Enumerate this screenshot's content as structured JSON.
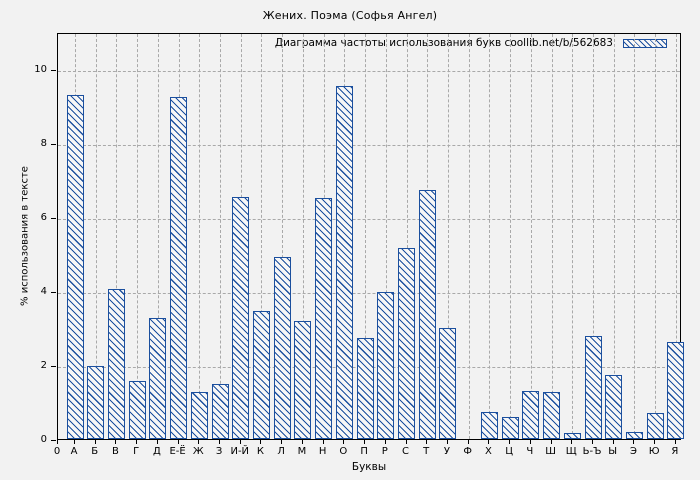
{
  "title": "Жених. Поэма (Софья Ангел)",
  "chart_data": {
    "type": "bar",
    "title": "Жених. Поэма (Софья Ангел)",
    "legend": "Диаграмма частоты использования букв coollib.net/b/562683",
    "legend_position": "top-right",
    "xlabel": "Буквы",
    "ylabel": "% использования в тексте",
    "x_origin_label": "0",
    "categories": [
      "А",
      "Б",
      "В",
      "Г",
      "Д",
      "Е-Ё",
      "Ж",
      "З",
      "И-Й",
      "К",
      "Л",
      "М",
      "Н",
      "О",
      "П",
      "Р",
      "С",
      "Т",
      "У",
      "Ф",
      "Х",
      "Ц",
      "Ч",
      "Ш",
      "Щ",
      "Ь-Ъ",
      "Ы",
      "Э",
      "Ю",
      "Я"
    ],
    "values": [
      9.3,
      1.98,
      4.05,
      1.57,
      3.27,
      9.24,
      1.27,
      1.49,
      6.54,
      3.46,
      4.92,
      3.19,
      6.51,
      9.54,
      2.73,
      3.97,
      5.16,
      6.73,
      3.0,
      0,
      0.73,
      0.59,
      1.3,
      1.27,
      0.16,
      2.78,
      1.73,
      0.19,
      0.7,
      2.62
    ],
    "yticks": [
      0,
      2,
      4,
      6,
      8,
      10
    ],
    "ylim": [
      0,
      11
    ],
    "grid": true,
    "colors": {
      "bar_border": "#1b4f9e",
      "bar_fill": "#f7f7f7",
      "grid": "#a9a9a9",
      "axis": "#000000",
      "background": "#f2f2f2"
    }
  }
}
